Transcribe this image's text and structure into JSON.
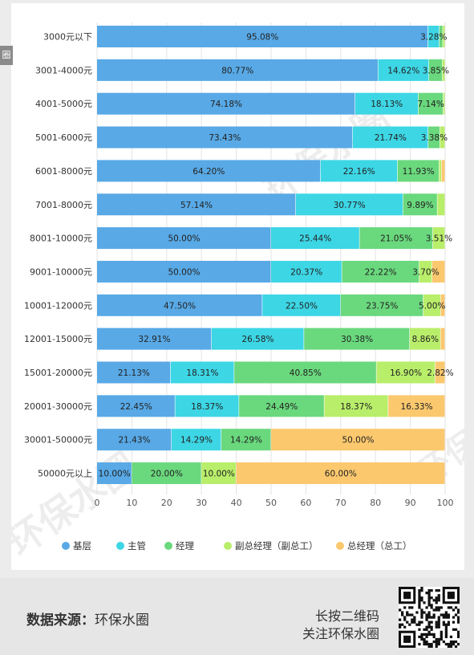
{
  "chart_data": {
    "type": "bar",
    "orientation": "horizontal",
    "stacked": true,
    "categories": [
      "3000元以下",
      "3001-4000元",
      "4001-5000元",
      "5001-6000元",
      "6001-8000元",
      "7001-8000元",
      "8001-10000元",
      "9001-10000元",
      "10001-12000元",
      "12001-15000元",
      "15001-20000元",
      "20001-30000元",
      "30001-50000元",
      "50000元以上"
    ],
    "series": [
      {
        "name": "基层",
        "color": "#58a9e6",
        "values": [
          95.08,
          80.77,
          74.18,
          73.43,
          64.2,
          57.14,
          50.0,
          50.0,
          47.5,
          32.91,
          21.13,
          22.45,
          21.43,
          10.0
        ]
      },
      {
        "name": "主管",
        "color": "#3dd6e5",
        "values": [
          3.28,
          14.62,
          18.13,
          21.74,
          22.16,
          30.77,
          25.44,
          20.37,
          22.5,
          26.58,
          18.31,
          18.37,
          14.29,
          0
        ]
      },
      {
        "name": "经理",
        "color": "#6ad87d",
        "values": [
          1.0,
          3.85,
          7.14,
          3.38,
          11.93,
          9.89,
          21.05,
          22.22,
          23.75,
          30.38,
          40.85,
          24.49,
          14.29,
          20.0
        ]
      },
      {
        "name": "副总经理（副总工）",
        "color": "#b9ee6a",
        "values": [
          0.64,
          0.76,
          0.55,
          1.45,
          0.71,
          2.2,
          3.51,
          3.7,
          5.0,
          8.86,
          16.9,
          18.37,
          0,
          10.0
        ]
      },
      {
        "name": "总经理（总工）",
        "color": "#fbc86e",
        "values": [
          0,
          0,
          0,
          0,
          1.0,
          0,
          0,
          3.71,
          1.25,
          1.27,
          2.82,
          16.33,
          50.0,
          60.0
        ]
      }
    ],
    "labels": [
      [
        "95.08%",
        "3.28%",
        "",
        "",
        ""
      ],
      [
        "80.77%",
        "14.62%",
        "3.85%",
        "",
        ""
      ],
      [
        "74.18%",
        "18.13%",
        "7.14%",
        "",
        ""
      ],
      [
        "73.43%",
        "21.74%",
        "3.38%",
        "",
        ""
      ],
      [
        "64.20%",
        "22.16%",
        "11.93%",
        "",
        ""
      ],
      [
        "57.14%",
        "30.77%",
        "9.89%",
        "",
        ""
      ],
      [
        "50.00%",
        "25.44%",
        "21.05%",
        "3.51%",
        ""
      ],
      [
        "50.00%",
        "20.37%",
        "22.22%",
        "3.70%",
        ""
      ],
      [
        "47.50%",
        "22.50%",
        "23.75%",
        "5.00%",
        ""
      ],
      [
        "32.91%",
        "26.58%",
        "30.38%",
        "8.86%",
        ""
      ],
      [
        "21.13%",
        "18.31%",
        "40.85%",
        "16.90%",
        "2.82%"
      ],
      [
        "22.45%",
        "18.37%",
        "24.49%",
        "18.37%",
        "16.33%"
      ],
      [
        "21.43%",
        "14.29%",
        "14.29%",
        "",
        "50.00%"
      ],
      [
        "10.00%",
        "",
        "20.00%",
        "10.00%",
        "60.00%"
      ]
    ],
    "xticks": [
      "0",
      "10",
      "20",
      "30",
      "40",
      "50",
      "60",
      "70",
      "80",
      "90",
      "100"
    ],
    "xlim": [
      0,
      100
    ],
    "grid": "vertical",
    "legend_position": "bottom",
    "title": "",
    "xlabel": "",
    "ylabel": ""
  },
  "watermark": "环保水圈",
  "side_tab": "圈",
  "footer": {
    "source_label": "数据来源：",
    "source_value": "环保水圈",
    "qr_caption_line1": "长按二维码",
    "qr_caption_line2": "关注环保水圈"
  }
}
